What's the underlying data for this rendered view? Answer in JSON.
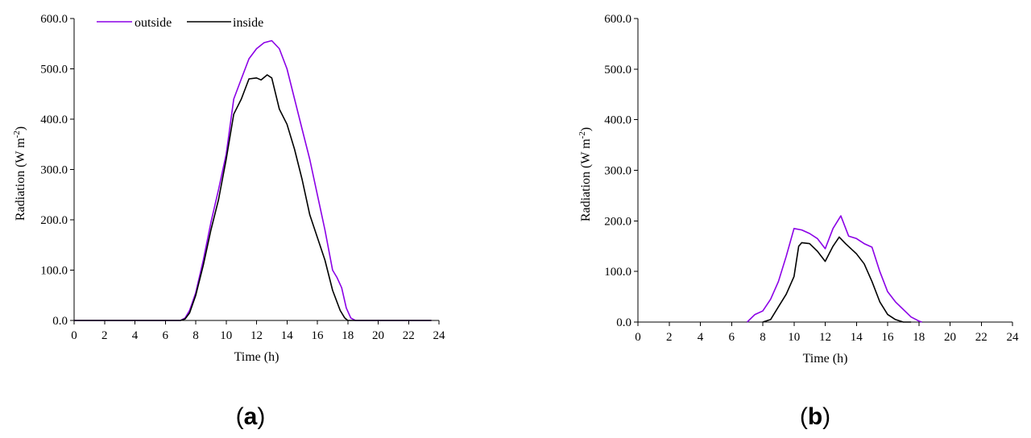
{
  "colors": {
    "outside": "#8b00e6",
    "inside": "#000000"
  },
  "panel_labels": [
    {
      "open": "(",
      "letter": "a",
      "close": ")"
    },
    {
      "open": "(",
      "letter": "b",
      "close": ")"
    }
  ],
  "chart_data": [
    {
      "type": "line",
      "xlabel": "Time (h)",
      "ylabel": "Radiation (W m",
      "ylabel_sup": "-2",
      "ylabel_close": ")",
      "xlim": [
        0,
        24
      ],
      "ylim": [
        0,
        600
      ],
      "xticks": [
        "0",
        "2",
        "4",
        "6",
        "8",
        "10",
        "12",
        "14",
        "16",
        "18",
        "20",
        "22",
        "24"
      ],
      "yticks": [
        "0.0",
        "100.0",
        "200.0",
        "300.0",
        "400.0",
        "500.0",
        "600.0"
      ],
      "legend": {
        "placement": "top-left",
        "entries": [
          "outside",
          "inside"
        ]
      },
      "series": [
        {
          "name": "outside",
          "color_key": "outside",
          "points": [
            [
              0,
              0
            ],
            [
              2,
              0
            ],
            [
              4,
              0
            ],
            [
              6,
              0
            ],
            [
              7,
              0
            ],
            [
              7.3,
              5
            ],
            [
              7.6,
              20
            ],
            [
              8,
              55
            ],
            [
              8.5,
              120
            ],
            [
              9,
              195
            ],
            [
              9.5,
              260
            ],
            [
              10,
              330
            ],
            [
              10.5,
              440
            ],
            [
              11,
              480
            ],
            [
              11.5,
              520
            ],
            [
              12,
              540
            ],
            [
              12.5,
              552
            ],
            [
              13,
              556
            ],
            [
              13.5,
              540
            ],
            [
              14,
              500
            ],
            [
              14.5,
              440
            ],
            [
              15,
              380
            ],
            [
              15.5,
              320
            ],
            [
              16,
              250
            ],
            [
              16.5,
              180
            ],
            [
              17,
              100
            ],
            [
              17.3,
              85
            ],
            [
              17.6,
              65
            ],
            [
              17.9,
              25
            ],
            [
              18.2,
              5
            ],
            [
              18.5,
              0
            ],
            [
              20,
              0
            ],
            [
              22,
              0
            ],
            [
              23.5,
              0
            ]
          ]
        },
        {
          "name": "inside",
          "color_key": "inside",
          "points": [
            [
              0,
              0
            ],
            [
              2,
              0
            ],
            [
              4,
              0
            ],
            [
              6,
              0
            ],
            [
              7,
              0
            ],
            [
              7.3,
              3
            ],
            [
              7.6,
              15
            ],
            [
              8,
              50
            ],
            [
              8.5,
              110
            ],
            [
              9,
              180
            ],
            [
              9.5,
              240
            ],
            [
              10,
              320
            ],
            [
              10.5,
              410
            ],
            [
              11,
              440
            ],
            [
              11.5,
              480
            ],
            [
              12,
              482
            ],
            [
              12.3,
              478
            ],
            [
              12.7,
              488
            ],
            [
              13,
              482
            ],
            [
              13.5,
              420
            ],
            [
              14,
              390
            ],
            [
              14.5,
              340
            ],
            [
              15,
              280
            ],
            [
              15.5,
              210
            ],
            [
              16,
              165
            ],
            [
              16.5,
              120
            ],
            [
              17,
              60
            ],
            [
              17.5,
              20
            ],
            [
              17.8,
              5
            ],
            [
              18,
              0
            ],
            [
              20,
              0
            ],
            [
              22,
              0
            ],
            [
              23.5,
              0
            ]
          ]
        }
      ]
    },
    {
      "type": "line",
      "xlabel": "Time (h)",
      "ylabel": "Radiation (W m",
      "ylabel_sup": "-2",
      "ylabel_close": ")",
      "xlim": [
        0,
        24
      ],
      "ylim": [
        0,
        600
      ],
      "xticks": [
        "0",
        "2",
        "4",
        "6",
        "8",
        "10",
        "12",
        "14",
        "16",
        "18",
        "20",
        "22",
        "24"
      ],
      "yticks": [
        "0.0",
        "100.0",
        "200.0",
        "300.0",
        "400.0",
        "500.0",
        "600.0"
      ],
      "series": [
        {
          "name": "outside",
          "color_key": "outside",
          "points": [
            [
              7,
              0
            ],
            [
              7.5,
              15
            ],
            [
              8,
              22
            ],
            [
              8.5,
              45
            ],
            [
              9,
              80
            ],
            [
              9.5,
              130
            ],
            [
              10,
              185
            ],
            [
              10.5,
              182
            ],
            [
              11,
              175
            ],
            [
              11.5,
              165
            ],
            [
              12,
              145
            ],
            [
              12.5,
              185
            ],
            [
              13,
              210
            ],
            [
              13.5,
              170
            ],
            [
              14,
              165
            ],
            [
              14.5,
              155
            ],
            [
              15,
              148
            ],
            [
              15.5,
              100
            ],
            [
              16,
              60
            ],
            [
              16.5,
              40
            ],
            [
              17,
              25
            ],
            [
              17.5,
              10
            ],
            [
              18,
              2
            ],
            [
              18.2,
              0
            ]
          ]
        },
        {
          "name": "inside",
          "color_key": "inside",
          "points": [
            [
              8,
              0
            ],
            [
              8.5,
              5
            ],
            [
              9,
              30
            ],
            [
              9.5,
              55
            ],
            [
              10,
              90
            ],
            [
              10.3,
              150
            ],
            [
              10.5,
              157
            ],
            [
              11,
              155
            ],
            [
              11.5,
              140
            ],
            [
              12,
              120
            ],
            [
              12.5,
              150
            ],
            [
              12.9,
              168
            ],
            [
              13.3,
              155
            ],
            [
              14,
              135
            ],
            [
              14.5,
              115
            ],
            [
              15,
              80
            ],
            [
              15.5,
              40
            ],
            [
              16,
              15
            ],
            [
              16.5,
              5
            ],
            [
              17,
              0
            ],
            [
              17.5,
              0
            ]
          ]
        }
      ]
    }
  ]
}
